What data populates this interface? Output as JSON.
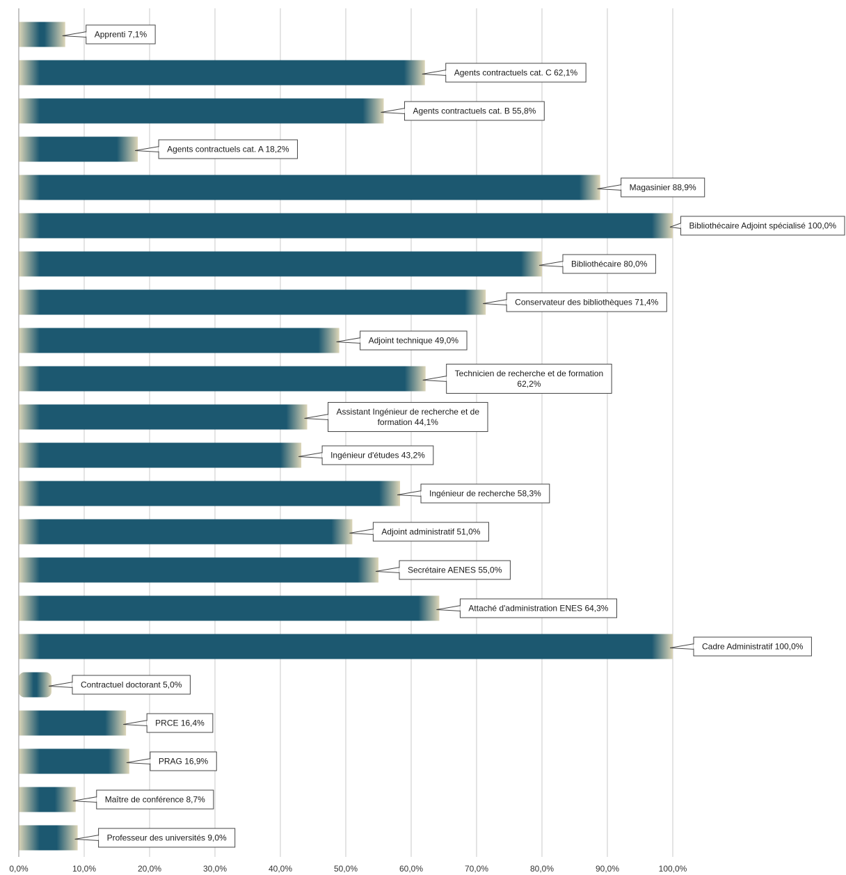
{
  "chart_data": {
    "type": "bar",
    "orientation": "horizontal",
    "title": "",
    "xlabel": "",
    "ylabel": "",
    "xlim": [
      0,
      100
    ],
    "x_ticks": [
      "0,0%",
      "10,0%",
      "20,0%",
      "30,0%",
      "40,0%",
      "50,0%",
      "60,0%",
      "70,0%",
      "80,0%",
      "90,0%",
      "100,0%"
    ],
    "grid": true,
    "legend": "none",
    "colors": {
      "bar_core": "#1c5870",
      "bar_edge": "#ddd6b8"
    },
    "categories": [
      "Apprenti",
      "Agents contractuels cat. C",
      "Agents contractuels cat. B",
      "Agents contractuels cat. A",
      "Magasinier",
      "Bibliothécaire Adjoint spécialisé",
      "Bibliothécaire",
      "Conservateur des bibliothèques",
      "Adjoint technique",
      "Technicien de recherche et de formation",
      "Assistant Ingénieur de recherche et de formation",
      "Ingénieur d'études",
      "Ingénieur de recherche",
      "Adjoint administratif",
      "Secrétaire AENES",
      "Attaché d'administration ENES",
      "Cadre Administratif",
      "Contractuel doctorant",
      "PRCE",
      "PRAG",
      "Maître de conférence",
      "Professeur des universités"
    ],
    "values": [
      7.1,
      62.1,
      55.8,
      18.2,
      88.9,
      100.0,
      80.0,
      71.4,
      49.0,
      62.2,
      44.1,
      43.2,
      58.3,
      51.0,
      55.0,
      64.3,
      100.0,
      5.0,
      16.4,
      16.9,
      8.7,
      9.0
    ],
    "data_labels": [
      [
        "Apprenti 7,1%"
      ],
      [
        "Agents contractuels cat. C 62,1%"
      ],
      [
        "Agents contractuels cat. B 55,8%"
      ],
      [
        "Agents contractuels cat. A 18,2%"
      ],
      [
        "Magasinier  88,9%"
      ],
      [
        "Bibliothécaire Adjoint spécialisé 100,0%"
      ],
      [
        "Bibliothécaire 80,0%"
      ],
      [
        "Conservateur des bibliothèques 71,4%"
      ],
      [
        "Adjoint technique 49,0%"
      ],
      [
        "Technicien de recherche et de formation",
        "62,2%"
      ],
      [
        "Assistant Ingénieur de recherche et de",
        "formation 44,1%"
      ],
      [
        "Ingénieur d'études 43,2%"
      ],
      [
        "Ingénieur de recherche 58,3%"
      ],
      [
        "Adjoint administratif 51,0%"
      ],
      [
        "Secrétaire AENES 55,0%"
      ],
      [
        "Attaché d'administration ENES 64,3%"
      ],
      [
        "Cadre Administratif 100,0%"
      ],
      [
        "Contractuel doctorant 5,0%"
      ],
      [
        "PRCE 16,4%"
      ],
      [
        "PRAG 16,9%"
      ],
      [
        "Maître de conférence 8,7%"
      ],
      [
        "Professeur des universités 9,0%"
      ]
    ]
  }
}
